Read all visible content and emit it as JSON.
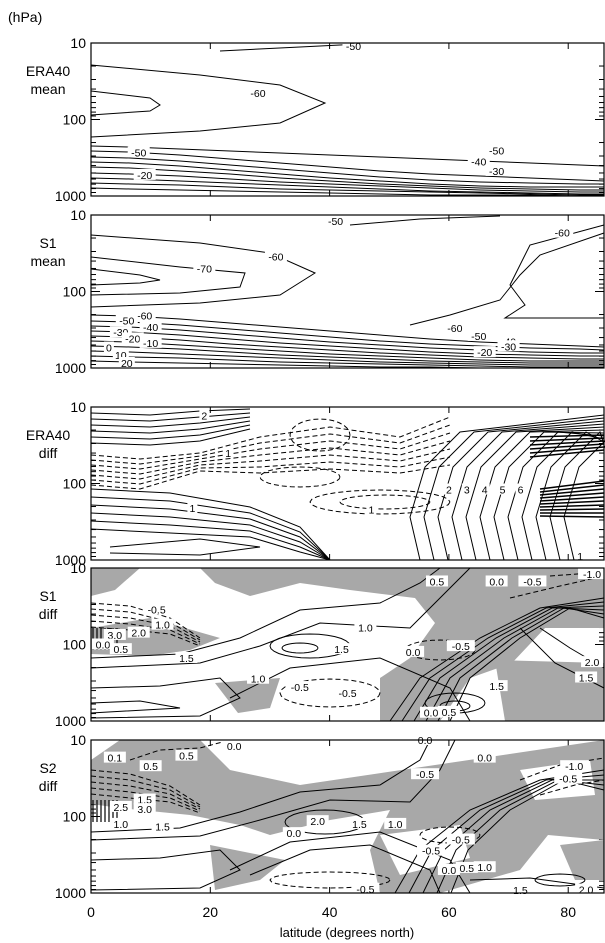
{
  "chart_data": {
    "type": "contour",
    "unit_label": "(hPa)",
    "xlabel": "latitude (degrees north)",
    "x_ticks": [
      "0",
      "20",
      "40",
      "60",
      "80"
    ],
    "x_range": [
      0,
      86
    ],
    "y_ticks": [
      "10",
      "100",
      "1000"
    ],
    "y_range": [
      10,
      1000
    ],
    "y_scale": "log",
    "colors": {
      "line": "#000000",
      "shade": "#a8a8a8",
      "background": "#ffffff"
    },
    "panels": [
      {
        "label_line1": "ERA40",
        "label_line2": "mean",
        "contour_labels": [
          {
            "text": "-50",
            "lat": 44,
            "p": 11
          },
          {
            "text": "-60",
            "lat": 28,
            "p": 45
          },
          {
            "text": "-50",
            "lat": 8,
            "p": 270
          },
          {
            "text": "-20",
            "lat": 9,
            "p": 530
          },
          {
            "text": "-50",
            "lat": 68,
            "p": 255
          },
          {
            "text": "-40",
            "lat": 65,
            "p": 355
          },
          {
            "text": "-30",
            "lat": 68,
            "p": 470
          }
        ]
      },
      {
        "label_line1": "S1",
        "label_line2": "mean",
        "contour_labels": [
          {
            "text": "-50",
            "lat": 41,
            "p": 12
          },
          {
            "text": "-60",
            "lat": 79,
            "p": 17
          },
          {
            "text": "-60",
            "lat": 31,
            "p": 35
          },
          {
            "text": "-70",
            "lat": 19,
            "p": 50
          },
          {
            "text": "-60",
            "lat": 9,
            "p": 205
          },
          {
            "text": "-50",
            "lat": 6,
            "p": 240
          },
          {
            "text": "-40",
            "lat": 10,
            "p": 290
          },
          {
            "text": "-30",
            "lat": 5,
            "p": 340
          },
          {
            "text": "-20",
            "lat": 7,
            "p": 410
          },
          {
            "text": "-10",
            "lat": 10,
            "p": 470
          },
          {
            "text": "0",
            "lat": 3,
            "p": 540
          },
          {
            "text": "10",
            "lat": 5,
            "p": 680
          },
          {
            "text": "20",
            "lat": 6,
            "p": 860
          },
          {
            "text": "-60",
            "lat": 61,
            "p": 300
          },
          {
            "text": "-50",
            "lat": 65,
            "p": 380
          },
          {
            "text": "-40",
            "lat": 70,
            "p": 450
          },
          {
            "text": "-30",
            "lat": 70,
            "p": 520
          },
          {
            "text": "-20",
            "lat": 66,
            "p": 620
          }
        ]
      },
      {
        "label_line1": "ERA40",
        "label_line2": "diff",
        "contour_labels": [
          {
            "text": "2",
            "lat": 19,
            "p": 13
          },
          {
            "text": "1",
            "lat": 23,
            "p": 40
          },
          {
            "text": "1",
            "lat": 47,
            "p": 220
          },
          {
            "text": "1",
            "lat": 17,
            "p": 210
          },
          {
            "text": "1",
            "lat": 82,
            "p": 880
          },
          {
            "text": "2",
            "lat": 60,
            "p": 120
          },
          {
            "text": "3",
            "lat": 63,
            "p": 120
          },
          {
            "text": "4",
            "lat": 66,
            "p": 120
          },
          {
            "text": "5",
            "lat": 69,
            "p": 120
          },
          {
            "text": "6",
            "lat": 72,
            "p": 120
          }
        ]
      },
      {
        "label_line1": "S1",
        "label_line2": "diff",
        "contour_labels": [
          {
            "text": "0.5",
            "lat": 58,
            "p": 15
          },
          {
            "text": "0.0",
            "lat": 68,
            "p": 15
          },
          {
            "text": "-0.5",
            "lat": 74,
            "p": 15
          },
          {
            "text": "-1.0",
            "lat": 84,
            "p": 12
          },
          {
            "text": "-0.5",
            "lat": 11,
            "p": 35
          },
          {
            "text": "1.0",
            "lat": 12,
            "p": 55
          },
          {
            "text": "2.0",
            "lat": 8,
            "p": 70
          },
          {
            "text": "3.0",
            "lat": 4,
            "p": 75
          },
          {
            "text": "0.0",
            "lat": 2,
            "p": 100
          },
          {
            "text": "0.5",
            "lat": 5,
            "p": 115
          },
          {
            "text": "1.0",
            "lat": 46,
            "p": 60
          },
          {
            "text": "1.5",
            "lat": 42,
            "p": 115
          },
          {
            "text": "0.0",
            "lat": 54,
            "p": 125
          },
          {
            "text": "-0.5",
            "lat": 62,
            "p": 105
          },
          {
            "text": "1.5",
            "lat": 16,
            "p": 150
          },
          {
            "text": "1.0",
            "lat": 28,
            "p": 280
          },
          {
            "text": "-0.5",
            "lat": 35,
            "p": 360
          },
          {
            "text": "-0.5",
            "lat": 43,
            "p": 430
          },
          {
            "text": "1.5",
            "lat": 68,
            "p": 350
          },
          {
            "text": "2.0",
            "lat": 84,
            "p": 170
          },
          {
            "text": "1.5",
            "lat": 83,
            "p": 270
          },
          {
            "text": "0.0",
            "lat": 57,
            "p": 780
          },
          {
            "text": "0.5",
            "lat": 60,
            "p": 760
          }
        ]
      },
      {
        "label_line1": "S2",
        "label_line2": "diff",
        "contour_labels": [
          {
            "text": "0.1",
            "lat": 4,
            "p": 17
          },
          {
            "text": "0.5",
            "lat": 10,
            "p": 22
          },
          {
            "text": "0.5",
            "lat": 16,
            "p": 16
          },
          {
            "text": "0.0",
            "lat": 24,
            "p": 12
          },
          {
            "text": "0.0",
            "lat": 56,
            "p": 10
          },
          {
            "text": "-0.5",
            "lat": 56,
            "p": 28
          },
          {
            "text": "0.0",
            "lat": 66,
            "p": 17
          },
          {
            "text": "-1.0",
            "lat": 81,
            "p": 22
          },
          {
            "text": "-0.5",
            "lat": 80,
            "p": 32
          },
          {
            "text": "1.5",
            "lat": 9,
            "p": 60
          },
          {
            "text": "2.5",
            "lat": 5,
            "p": 75
          },
          {
            "text": "3.0",
            "lat": 9,
            "p": 80
          },
          {
            "text": "1.0",
            "lat": 5,
            "p": 125
          },
          {
            "text": "1.5",
            "lat": 12,
            "p": 135
          },
          {
            "text": "2.0",
            "lat": 38,
            "p": 115
          },
          {
            "text": "1.5",
            "lat": 45,
            "p": 125
          },
          {
            "text": "1.0",
            "lat": 51,
            "p": 125
          },
          {
            "text": "0.0",
            "lat": 34,
            "p": 165
          },
          {
            "text": "-0.5",
            "lat": 62,
            "p": 200
          },
          {
            "text": "-0.5",
            "lat": 57,
            "p": 280
          },
          {
            "text": "0.0",
            "lat": 60,
            "p": 500
          },
          {
            "text": "0.5",
            "lat": 63,
            "p": 470
          },
          {
            "text": "1.0",
            "lat": 66,
            "p": 460
          },
          {
            "text": "-0.5",
            "lat": 46,
            "p": 880
          },
          {
            "text": "1.5",
            "lat": 72,
            "p": 920
          },
          {
            "text": "2.0",
            "lat": 83,
            "p": 900
          }
        ]
      }
    ]
  }
}
